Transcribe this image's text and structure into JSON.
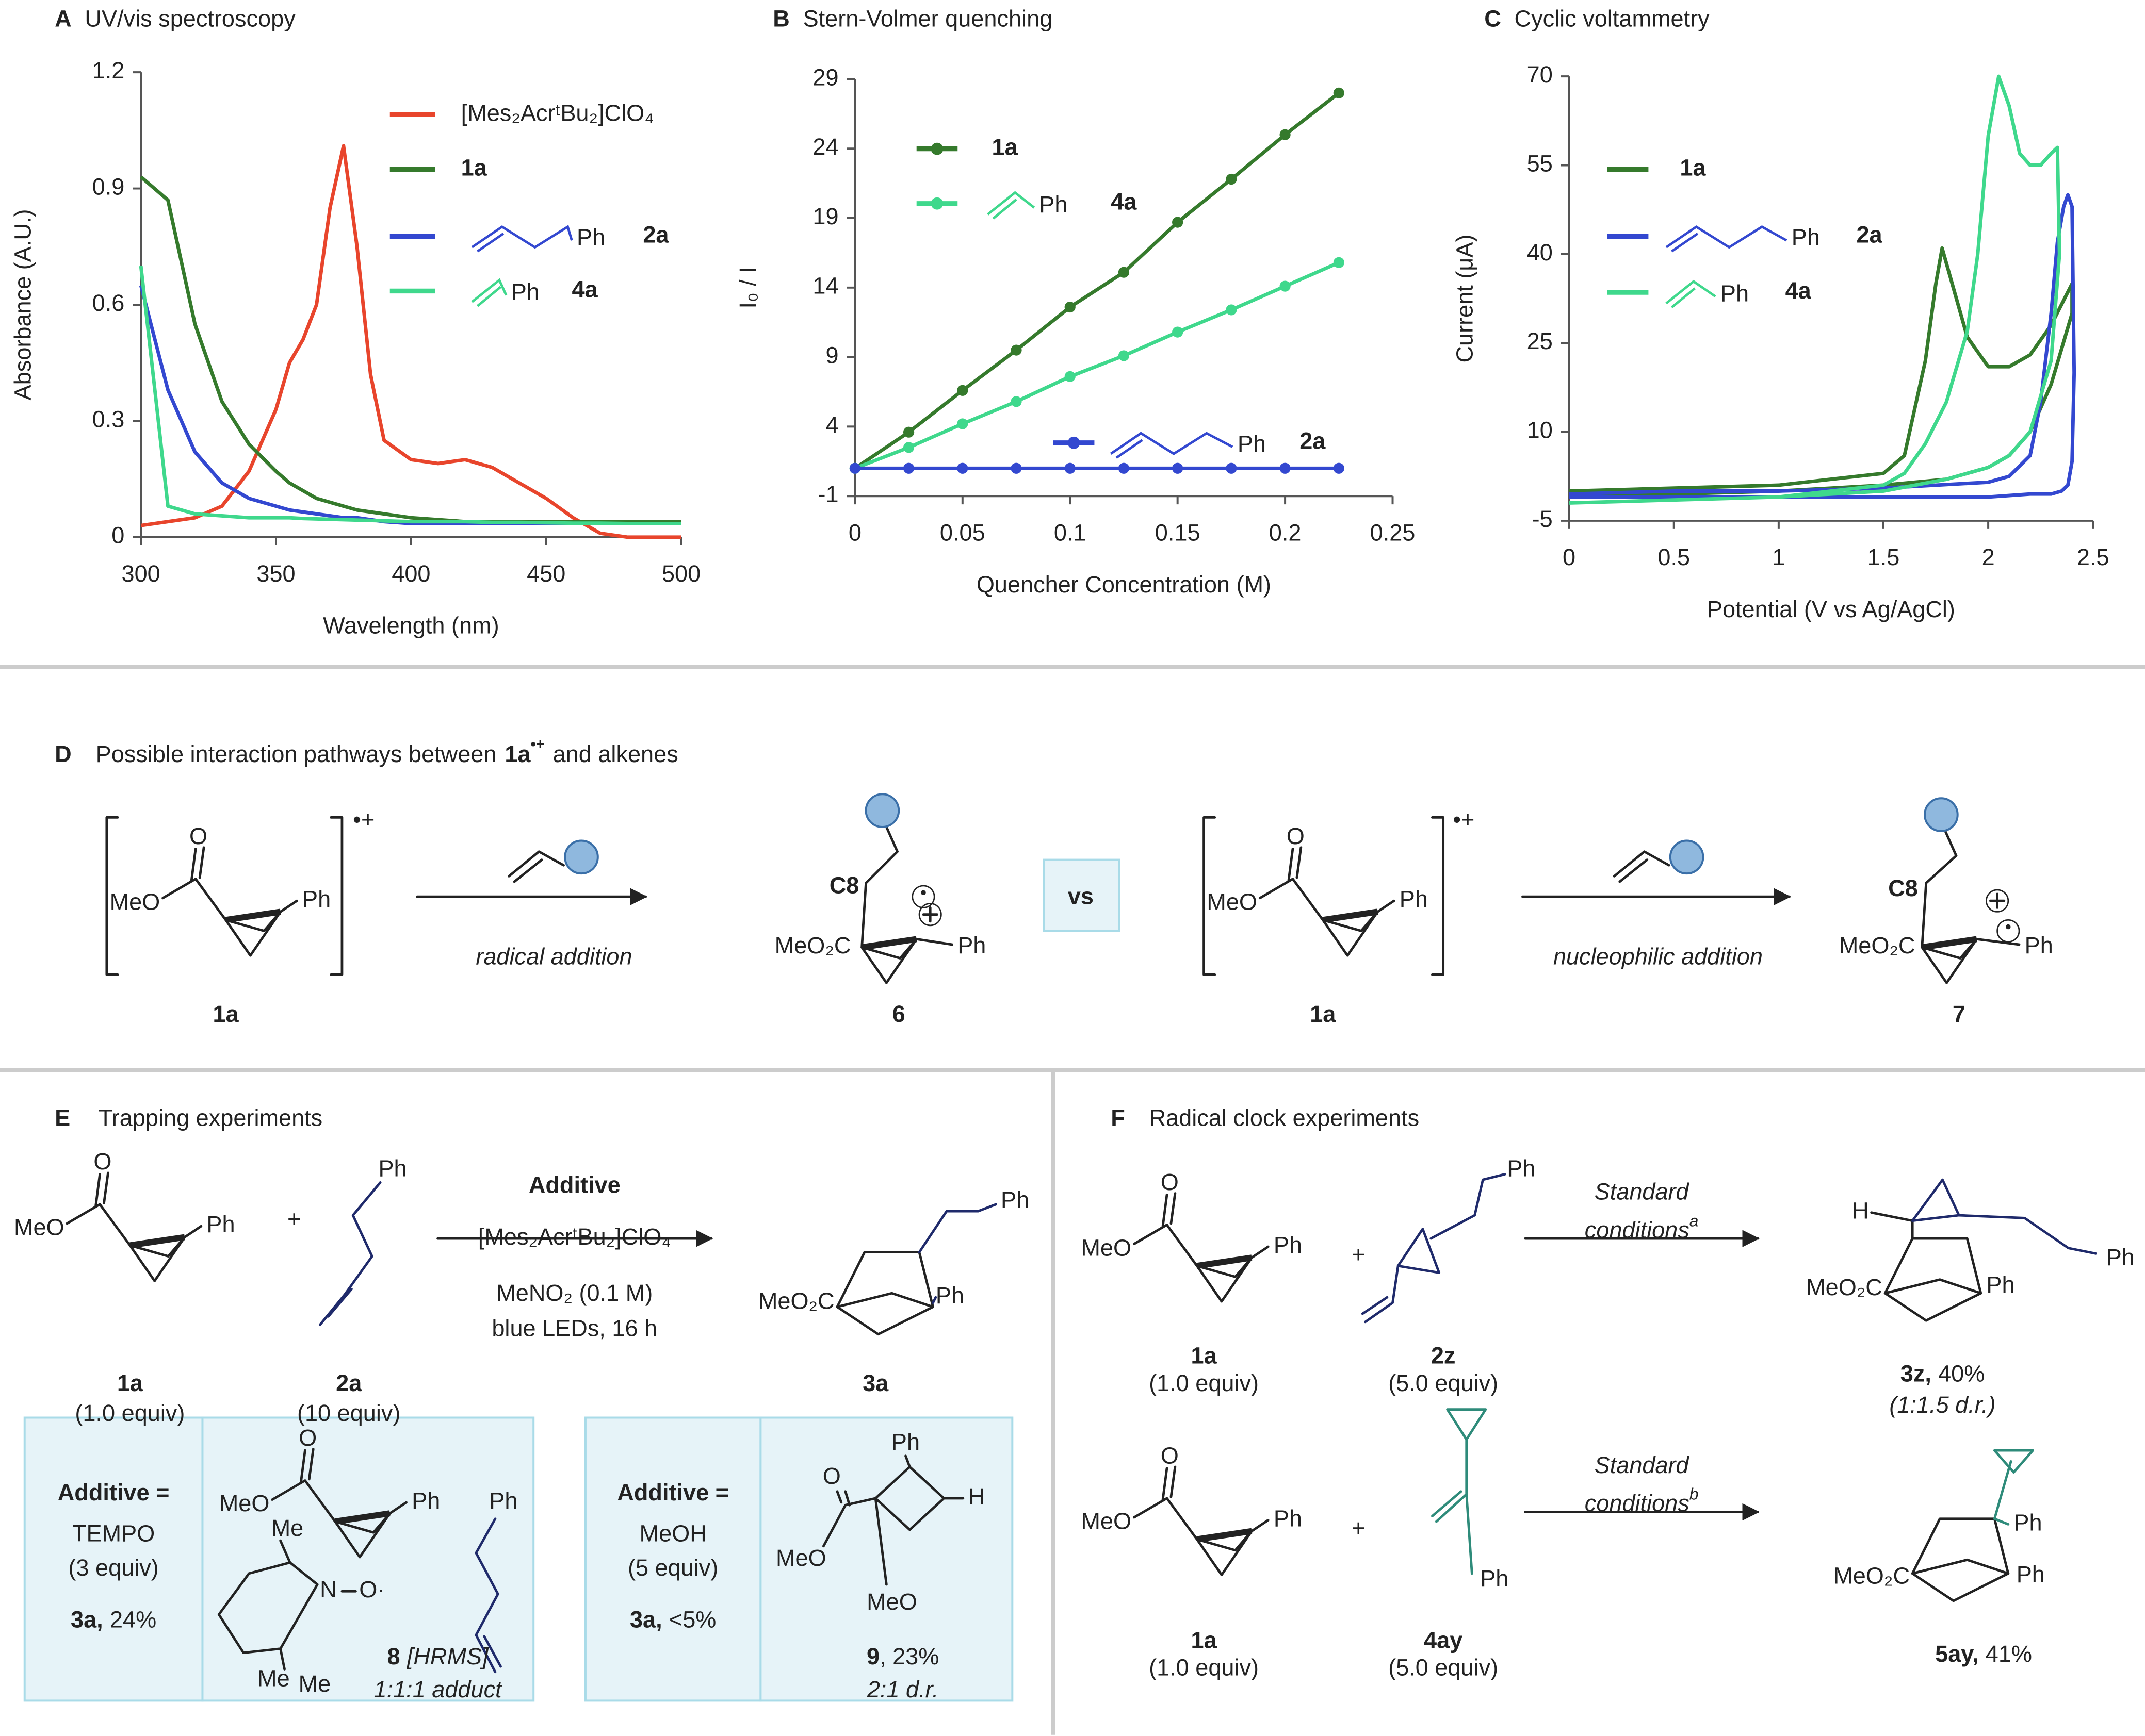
{
  "chart_data": [
    {
      "type": "line",
      "panel": "A",
      "title": "UV/vis spectroscopy",
      "xlabel": "Wavelength (nm)",
      "ylabel": "Absorbance (A.U.)",
      "x": [
        300,
        310,
        320,
        330,
        340,
        350,
        355,
        360,
        365,
        370,
        375,
        380,
        385,
        390,
        400,
        410,
        420,
        430,
        440,
        450,
        460,
        470,
        480,
        490,
        500
      ],
      "xlim": [
        300,
        500
      ],
      "xticks": [
        300,
        350,
        400,
        450,
        500
      ],
      "ylim": [
        0,
        1.2
      ],
      "yticks": [
        0,
        0.3,
        0.6,
        0.9,
        1.2
      ],
      "markers": false,
      "series": [
        {
          "name": "[Mes₂AcrᵗBu₂]ClO₄",
          "color": "#e8452c",
          "values": [
            0.03,
            0.04,
            0.05,
            0.08,
            0.17,
            0.33,
            0.45,
            0.51,
            0.6,
            0.85,
            1.01,
            0.75,
            0.42,
            0.25,
            0.2,
            0.19,
            0.2,
            0.18,
            0.14,
            0.1,
            0.05,
            0.01,
            0,
            0,
            0
          ]
        },
        {
          "name": "1a",
          "color": "#357a2c",
          "values": [
            0.93,
            0.87,
            0.55,
            0.35,
            0.24,
            0.17,
            0.14,
            0.12,
            0.1,
            0.09,
            0.08,
            0.07,
            0.065,
            0.06,
            0.05,
            0.045,
            0.04,
            0.04,
            0.04,
            0.04,
            0.04,
            0.04,
            0.04,
            0.04,
            0.04
          ]
        },
        {
          "name": "2a",
          "color": "#3348d0",
          "structure_label": "Ph",
          "values": [
            0.65,
            0.38,
            0.22,
            0.14,
            0.1,
            0.08,
            0.07,
            0.065,
            0.06,
            0.055,
            0.05,
            0.05,
            0.045,
            0.04,
            0.035,
            0.035,
            0.035,
            0.035,
            0.035,
            0.035,
            0.035,
            0.035,
            0.035,
            0.035,
            0.035
          ]
        },
        {
          "name": "4a",
          "color": "#3fd88c",
          "structure_label": "Ph",
          "values": [
            0.7,
            0.08,
            0.06,
            0.055,
            0.05,
            0.05,
            0.05,
            0.048,
            0.047,
            0.046,
            0.045,
            0.044,
            0.043,
            0.042,
            0.04,
            0.04,
            0.04,
            0.038,
            0.038,
            0.037,
            0.036,
            0.036,
            0.035,
            0.035,
            0.035
          ]
        }
      ]
    },
    {
      "type": "line",
      "panel": "B",
      "title": "Stern-Volmer quenching",
      "xlabel": "Quencher Concentration (M)",
      "ylabel": "I₀ / I",
      "x": [
        0,
        0.025,
        0.05,
        0.075,
        0.1,
        0.125,
        0.15,
        0.175,
        0.2,
        0.225
      ],
      "xlim": [
        0,
        0.25
      ],
      "xticks": [
        0,
        0.05,
        0.1,
        0.15,
        0.2,
        0.25
      ],
      "ylim": [
        -1,
        29
      ],
      "yticks": [
        -1,
        4,
        9,
        14,
        19,
        24,
        29
      ],
      "markers": true,
      "series": [
        {
          "name": "1a",
          "color": "#357a2c",
          "values": [
            1,
            3.6,
            6.6,
            9.5,
            12.6,
            15.1,
            18.7,
            21.8,
            25,
            28
          ]
        },
        {
          "name": "4a",
          "color": "#3fd88c",
          "structure_label": "Ph",
          "values": [
            1,
            2.5,
            4.2,
            5.8,
            7.6,
            9.1,
            10.8,
            12.4,
            14.1,
            15.8
          ]
        },
        {
          "name": "2a",
          "color": "#3348d0",
          "structure_label": "Ph",
          "values": [
            1,
            1,
            1,
            1,
            1,
            1,
            1,
            1,
            1,
            1
          ]
        }
      ]
    },
    {
      "type": "line",
      "panel": "C",
      "title": "Cyclic voltammetry",
      "xlabel": "Potential (V vs Ag/AgCl)",
      "ylabel": "Current (μA)",
      "xlim": [
        0,
        2.5
      ],
      "xticks": [
        0,
        0.5,
        1,
        1.5,
        2,
        2.5
      ],
      "ylim": [
        -5,
        70
      ],
      "yticks": [
        -5,
        10,
        25,
        40,
        55,
        70
      ],
      "markers": false,
      "series": [
        {
          "name": "1a",
          "color": "#357a2c",
          "x": [
            0,
            0.5,
            1,
            1.5,
            1.6,
            1.7,
            1.75,
            1.78,
            1.82,
            1.9,
            2.0,
            2.1,
            2.2,
            2.3,
            2.4,
            2.4,
            2.3,
            2.2,
            2.1,
            2.0,
            1.8,
            1.5,
            1.0,
            0.5,
            0
          ],
          "values": [
            0,
            0.5,
            1,
            3,
            6,
            22,
            35,
            41,
            36,
            26,
            21,
            21,
            23,
            28,
            35,
            30,
            18,
            10,
            6,
            4,
            2,
            1,
            0,
            -0.5,
            -1
          ]
        },
        {
          "name": "2a",
          "color": "#3348d0",
          "structure_label": "Ph",
          "x": [
            0,
            0.5,
            1,
            1.5,
            2.0,
            2.1,
            2.2,
            2.25,
            2.3,
            2.33,
            2.36,
            2.38,
            2.4,
            2.41,
            2.4,
            2.38,
            2.35,
            2.3,
            2.2,
            2.0,
            1.5,
            1.0,
            0.5,
            0
          ],
          "values": [
            -0.5,
            0,
            0,
            0.5,
            1.5,
            2.5,
            6,
            15,
            30,
            42,
            48,
            50,
            48,
            20,
            5,
            1,
            0,
            -0.5,
            -0.5,
            -1,
            -1,
            -1,
            -1,
            -1
          ]
        },
        {
          "name": "4a",
          "color": "#3fd88c",
          "structure_label": "Ph",
          "x": [
            0,
            0.5,
            1,
            1.5,
            1.6,
            1.7,
            1.8,
            1.9,
            1.95,
            2.0,
            2.05,
            2.1,
            2.15,
            2.2,
            2.25,
            2.3,
            2.33,
            2.34,
            2.3,
            2.2,
            2.1,
            2.0,
            1.8,
            1.5,
            1.0,
            0.5,
            0
          ],
          "values": [
            -2,
            -1.5,
            -1,
            1,
            3,
            8,
            15,
            27,
            40,
            60,
            70,
            65,
            57,
            55,
            55,
            57,
            58,
            40,
            22,
            10,
            6,
            4,
            2,
            0,
            -1,
            -1.5,
            -2
          ]
        }
      ]
    }
  ],
  "panel_d": {
    "letter": "D",
    "title": "Possible interaction pathways between",
    "title_species": "1a",
    "title_charge": "•+",
    "title_end": "and alkenes",
    "labels": [
      "•+",
      "MeO",
      "O",
      "Ph",
      "1a",
      "radical addition",
      "C8",
      "MeO₂C",
      "Ph",
      "6",
      "vs",
      "•+",
      "MeO",
      "O",
      "Ph",
      "1a",
      "nucleophilic addition",
      "C8",
      "MeO₂C",
      "Ph",
      "7"
    ]
  },
  "panel_e": {
    "letter": "E",
    "title": "Trapping experiments",
    "labels": [
      "MeO",
      "O",
      "Ph",
      "1a",
      "(1.0 equiv)",
      "+",
      "Ph",
      "2a",
      "(10 equiv)",
      "Additive",
      "[Mes₂AcrᵗBu₂]ClO₄",
      "MeNO₂ (0.1 M)",
      "blue LEDs, 16 h",
      "Ph",
      "MeO₂C",
      "Ph",
      "3a",
      "Additive =",
      "TEMPO",
      "(3 equiv)",
      "3a,",
      "24%",
      "MeO",
      "O",
      "Ph",
      "Ph",
      "Me",
      "N",
      "O·",
      "Me",
      "Me",
      "8",
      "[HRMS]",
      "1:1:1 adduct",
      "Additive =",
      "MeOH",
      "(5 equiv)",
      "3a,",
      "<5%",
      "Ph",
      "H",
      "O",
      "MeO",
      "MeO",
      "9",
      ", 23%",
      "2:1 d.r."
    ]
  },
  "panel_f": {
    "letter": "F",
    "title": "Radical clock experiments",
    "labels": [
      "MeO",
      "O",
      "Ph",
      "1a",
      "(1.0 equiv)",
      "+",
      "Ph",
      "2z",
      "(5.0 equiv)",
      "Standard",
      "conditions",
      "a",
      "H",
      "Ph",
      "MeO₂C",
      "Ph",
      "3z,",
      "40%",
      "(1:1.5 d.r.)",
      "MeO",
      "O",
      "Ph",
      "1a",
      "(1.0 equiv)",
      "+",
      "Ph",
      "4ay",
      "(5.0 equiv)",
      "Standard",
      "conditions",
      "b",
      "Ph",
      "MeO₂C",
      "Ph",
      "5ay,",
      "41%"
    ]
  }
}
